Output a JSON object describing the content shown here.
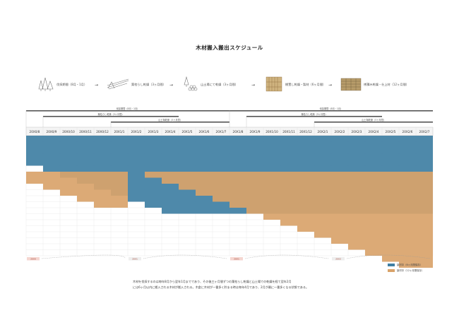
{
  "title": "木材搬入搬出スケジュール",
  "process_steps": [
    {
      "icon": "forest-trees-icon",
      "label": "伐採期間（8月・1月）"
    },
    {
      "icon": "logs-drying-icon",
      "label": "葉枯らし乾燥（3ヶ月間）"
    },
    {
      "icon": "log-pile-icon",
      "label": "山土場にて乾燥（3ヶ月間）"
    },
    {
      "icon": "stacked-lumber-icon",
      "label": "棚置し乾燥・製材（6ヶ月間）"
    },
    {
      "icon": "sawn-timber-icon",
      "label": "桟積み乾燥・仕上材（12ヶ月間）"
    }
  ],
  "header_bars": [
    {
      "label": "伐採期間（8月・1月）"
    },
    {
      "label": "葉枯らし乾燥（3ヶ月間）"
    },
    {
      "label": "山土場乾燥（3ヶ月間）"
    },
    {
      "label": "伐採期間（8月・1月）"
    },
    {
      "label": "葉枯らし乾燥（3ヶ月間）"
    },
    {
      "label": "山土場乾燥（3ヶ月間）"
    }
  ],
  "chart_data": {
    "type": "table",
    "columns": [
      "20X0/8",
      "20X0/9",
      "20X0/10",
      "20X0/11",
      "20X0/12",
      "20X1/1",
      "20X1/2",
      "20X1/3",
      "20X1/4",
      "20X1/5",
      "20X1/6",
      "20X1/7",
      "20X1/8",
      "20X1/9",
      "20X1/10",
      "20X1/11",
      "20X1/12",
      "20X2/1",
      "20X2/2",
      "20X2/3",
      "20X2/4",
      "20X2/5",
      "20X2/6",
      "20X2/7"
    ],
    "series": [
      {
        "name": "製材中（6ヶ月間保存）",
        "color": "#3f7fa3",
        "rows": [
          [
            0,
            23
          ],
          [
            0,
            23
          ],
          [
            0,
            23
          ],
          [
            0,
            23
          ],
          [
            0,
            23
          ],
          [
            1,
            23
          ],
          [
            2,
            23
          ],
          [
            3,
            23
          ],
          [
            4,
            23
          ],
          [
            5,
            23
          ],
          [
            6,
            23
          ],
          [
            7,
            23
          ],
          [
            8,
            23
          ]
        ]
      },
      {
        "name": "製材中（12ヶ月間保存）",
        "color": "#d9a36a",
        "rows": [
          [
            0,
            5
          ],
          [
            0,
            5
          ],
          [
            1,
            5
          ],
          [
            2,
            5
          ],
          [
            3,
            5
          ],
          [
            4,
            5
          ],
          [
            7,
            23
          ],
          [
            8,
            23
          ],
          [
            9,
            23
          ],
          [
            10,
            23
          ],
          [
            11,
            23
          ],
          [
            12,
            23
          ],
          [
            13,
            23
          ],
          [
            14,
            23
          ],
          [
            15,
            23
          ],
          [
            16,
            23
          ],
          [
            17,
            23
          ],
          [
            18,
            23
          ],
          [
            19,
            23
          ],
          [
            20,
            23
          ],
          [
            21,
            23
          ],
          [
            22,
            23
          ]
        ]
      }
    ],
    "row_tags": [
      {
        "col": 0,
        "label": "20X0"
      },
      {
        "col": 6,
        "label": "20X1"
      },
      {
        "col": 12,
        "label": "20X1"
      },
      {
        "col": 18,
        "label": "20X2"
      }
    ]
  },
  "legend": [
    {
      "label": "製材中（6ヶ月間保存）",
      "color": "#3f7fa3"
    },
    {
      "label": "製材中（12ヶ月間保存）",
      "color": "#d9a36a"
    }
  ],
  "note_lines": [
    "木材を伐採するのは毎年8月から翌年1月までであり、その後三ヶ月間ずつの葉枯らし乾燥と山土場での乾燥を経て翌年2月",
    "には6ヶ月以内に搬入される木材が搬入される。木倉に木材が一番多く貯まる時は毎年4月であり、2月が最に一番多くなる状態である。"
  ]
}
